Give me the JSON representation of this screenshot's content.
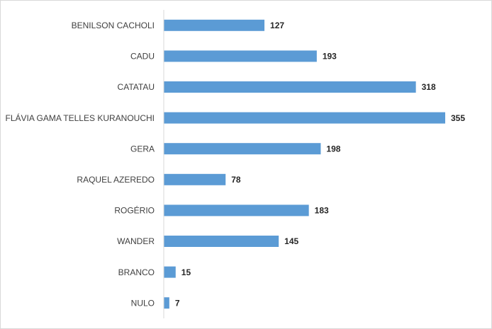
{
  "chart_data": {
    "type": "hbar",
    "categories": [
      "BENILSON CACHOLI",
      "CADU",
      "CATATAU",
      "FLÁVIA GAMA TELLES KURANOUCHI",
      "GERA",
      "RAQUEL AZEREDO",
      "ROGÉRIO",
      "WANDER",
      "BRANCO",
      "NULO"
    ],
    "values": [
      127,
      193,
      318,
      355,
      198,
      78,
      183,
      145,
      15,
      7
    ],
    "color": "#5b9bd5"
  }
}
